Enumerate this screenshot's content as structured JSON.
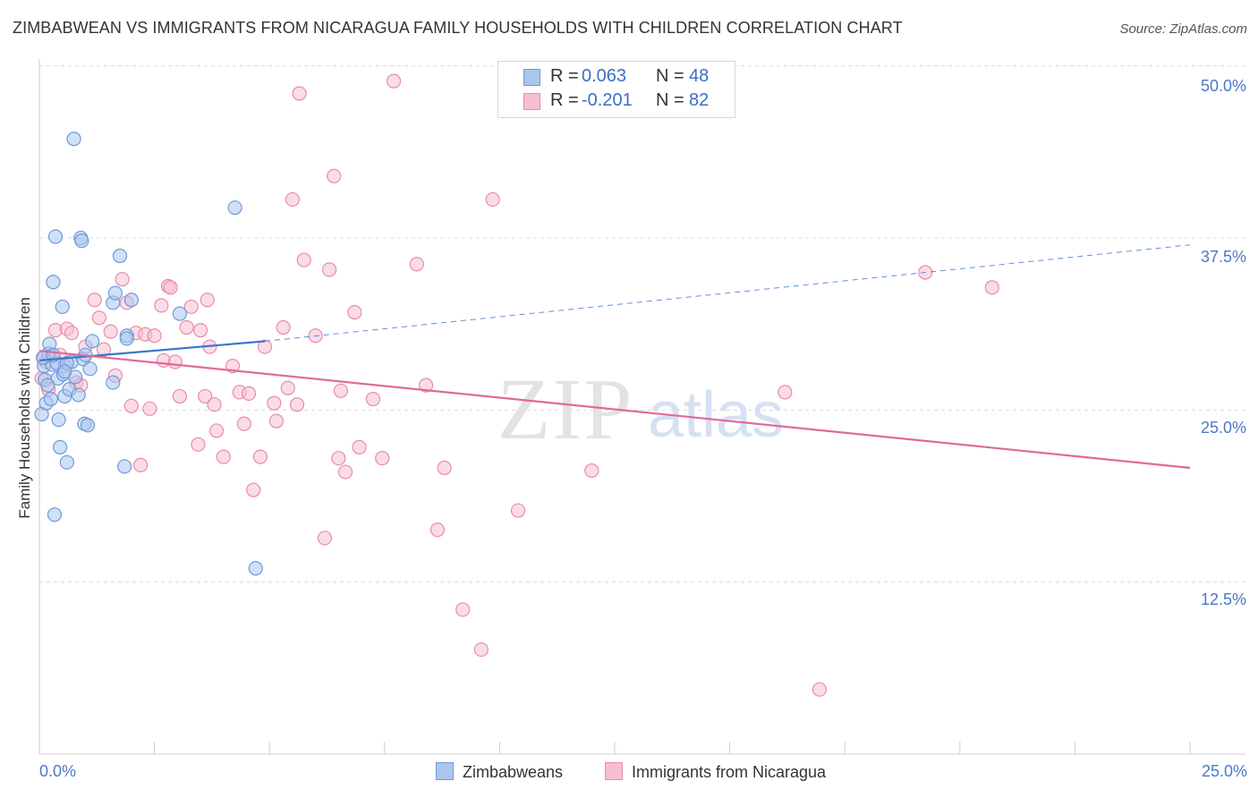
{
  "title": "ZIMBABWEAN VS IMMIGRANTS FROM NICARAGUA FAMILY HOUSEHOLDS WITH CHILDREN CORRELATION CHART",
  "source": "Source: ZipAtlas.com",
  "watermark": {
    "zip": "ZIP",
    "atlas": "atlas"
  },
  "stats": {
    "r_label": "R =",
    "n_label": "N =",
    "rows": [
      {
        "r": "0.063",
        "n": "48"
      },
      {
        "r": "-0.201",
        "n": "82"
      }
    ]
  },
  "legend": {
    "series_1": "Zimbabweans",
    "series_2": "Immigrants from Nicaragua"
  },
  "colors": {
    "blue_fill": "#a9c6ee",
    "blue_stroke": "#6f9ad8",
    "blue_line": "#3a75cc",
    "pink_fill": "#f6bfd1",
    "pink_stroke": "#e98ba9",
    "pink_line": "#e0699a",
    "tick_label": "#4a78c9"
  },
  "chart_data": {
    "type": "scatter",
    "title": "ZIMBABWEAN VS IMMIGRANTS FROM NICARAGUA FAMILY HOUSEHOLDS WITH CHILDREN CORRELATION CHART",
    "xlabel": "",
    "ylabel": "Family Households with Children",
    "xlim": [
      0,
      25
    ],
    "ylim": [
      0,
      50.5
    ],
    "x_tick_labels": [
      "0.0%",
      "25.0%"
    ],
    "y_ticks": [
      12.5,
      25.0,
      37.5,
      50.0
    ],
    "y_tick_labels": [
      "12.5%",
      "25.0%",
      "37.5%",
      "50.0%"
    ],
    "grid": true,
    "legend_position": "bottom",
    "series": [
      {
        "name": "Zimbabweans",
        "r": 0.063,
        "n": 48,
        "trend": {
          "x0": 0,
          "y0": 28.6,
          "x1": 4.9,
          "y1": 30.0,
          "dashed_to_x": 25,
          "dashed_to_y": 37.0
        },
        "points": [
          [
            0.05,
            24.7
          ],
          [
            0.1,
            28.2
          ],
          [
            0.12,
            27.2
          ],
          [
            0.15,
            25.5
          ],
          [
            0.2,
            29.1
          ],
          [
            0.22,
            29.8
          ],
          [
            0.25,
            25.8
          ],
          [
            0.28,
            28.3
          ],
          [
            0.3,
            34.3
          ],
          [
            0.33,
            17.4
          ],
          [
            0.35,
            37.6
          ],
          [
            0.38,
            28.4
          ],
          [
            0.4,
            27.3
          ],
          [
            0.42,
            24.3
          ],
          [
            0.45,
            22.3
          ],
          [
            0.5,
            32.5
          ],
          [
            0.52,
            27.6
          ],
          [
            0.55,
            26.0
          ],
          [
            0.6,
            21.2
          ],
          [
            0.65,
            26.5
          ],
          [
            0.7,
            28.5
          ],
          [
            0.75,
            44.7
          ],
          [
            0.78,
            27.4
          ],
          [
            0.85,
            26.1
          ],
          [
            0.9,
            37.5
          ],
          [
            0.92,
            37.3
          ],
          [
            0.95,
            28.7
          ],
          [
            0.98,
            24.0
          ],
          [
            1.0,
            29.0
          ],
          [
            1.05,
            23.9
          ],
          [
            1.1,
            28.0
          ],
          [
            1.15,
            30.0
          ],
          [
            1.6,
            27.0
          ],
          [
            1.6,
            32.8
          ],
          [
            1.65,
            33.5
          ],
          [
            1.75,
            36.2
          ],
          [
            1.85,
            20.9
          ],
          [
            1.9,
            30.4
          ],
          [
            1.9,
            30.2
          ],
          [
            2.0,
            33.0
          ],
          [
            3.05,
            32.0
          ],
          [
            4.25,
            39.7
          ],
          [
            4.7,
            13.5
          ],
          [
            0.18,
            26.8
          ],
          [
            0.08,
            28.8
          ],
          [
            0.6,
            28.4
          ],
          [
            0.55,
            27.8
          ],
          [
            0.3,
            29.0
          ]
        ]
      },
      {
        "name": "Immigrants from Nicaragua",
        "r": -0.201,
        "n": 82,
        "trend": {
          "x0": 0,
          "y0": 29.3,
          "x1": 25,
          "y1": 20.8
        },
        "points": [
          [
            0.05,
            27.3
          ],
          [
            0.1,
            28.8
          ],
          [
            0.15,
            28.5
          ],
          [
            0.2,
            26.5
          ],
          [
            0.3,
            29.0
          ],
          [
            0.35,
            30.8
          ],
          [
            0.45,
            29.0
          ],
          [
            0.55,
            28.2
          ],
          [
            0.6,
            30.9
          ],
          [
            0.7,
            30.6
          ],
          [
            0.8,
            27.0
          ],
          [
            0.9,
            26.8
          ],
          [
            1.0,
            29.6
          ],
          [
            1.2,
            33.0
          ],
          [
            1.3,
            31.7
          ],
          [
            1.4,
            29.4
          ],
          [
            1.55,
            30.7
          ],
          [
            1.65,
            27.5
          ],
          [
            1.8,
            34.5
          ],
          [
            1.9,
            32.8
          ],
          [
            2.0,
            25.3
          ],
          [
            2.1,
            30.6
          ],
          [
            2.2,
            21.0
          ],
          [
            2.3,
            30.5
          ],
          [
            2.4,
            25.1
          ],
          [
            2.5,
            30.4
          ],
          [
            2.65,
            32.6
          ],
          [
            2.7,
            28.6
          ],
          [
            2.8,
            34.0
          ],
          [
            2.85,
            33.9
          ],
          [
            2.95,
            28.5
          ],
          [
            3.05,
            26.0
          ],
          [
            3.2,
            31.0
          ],
          [
            3.3,
            32.5
          ],
          [
            3.45,
            22.5
          ],
          [
            3.5,
            30.8
          ],
          [
            3.6,
            26.0
          ],
          [
            3.65,
            33.0
          ],
          [
            3.7,
            29.6
          ],
          [
            3.8,
            25.4
          ],
          [
            3.85,
            23.5
          ],
          [
            4.0,
            21.6
          ],
          [
            4.2,
            28.2
          ],
          [
            4.35,
            26.3
          ],
          [
            4.45,
            24.0
          ],
          [
            4.55,
            26.2
          ],
          [
            4.65,
            19.2
          ],
          [
            4.8,
            21.6
          ],
          [
            4.9,
            29.6
          ],
          [
            5.1,
            25.5
          ],
          [
            5.15,
            24.2
          ],
          [
            5.3,
            31.0
          ],
          [
            5.4,
            26.6
          ],
          [
            5.5,
            40.3
          ],
          [
            5.6,
            25.4
          ],
          [
            5.65,
            48.0
          ],
          [
            5.75,
            35.9
          ],
          [
            6.0,
            30.4
          ],
          [
            6.2,
            15.7
          ],
          [
            6.3,
            35.2
          ],
          [
            6.4,
            42.0
          ],
          [
            6.5,
            21.5
          ],
          [
            6.55,
            26.4
          ],
          [
            6.65,
            20.5
          ],
          [
            6.85,
            32.1
          ],
          [
            6.95,
            22.3
          ],
          [
            7.25,
            25.8
          ],
          [
            7.45,
            21.5
          ],
          [
            7.7,
            48.9
          ],
          [
            8.2,
            35.6
          ],
          [
            8.4,
            26.8
          ],
          [
            8.65,
            16.3
          ],
          [
            8.8,
            20.8
          ],
          [
            9.2,
            10.5
          ],
          [
            9.6,
            7.6
          ],
          [
            9.85,
            40.3
          ],
          [
            10.4,
            17.7
          ],
          [
            12.0,
            20.6
          ],
          [
            16.2,
            26.3
          ],
          [
            16.95,
            4.7
          ],
          [
            19.25,
            35.0
          ],
          [
            20.7,
            33.9
          ]
        ]
      }
    ]
  }
}
